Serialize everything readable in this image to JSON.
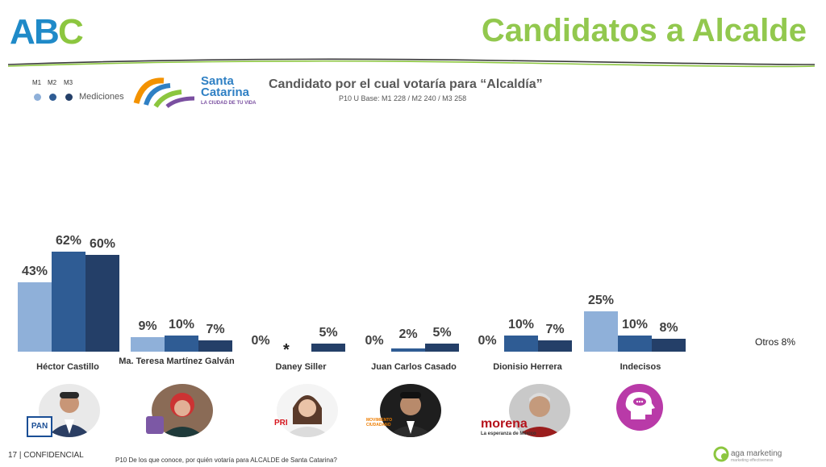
{
  "header": {
    "logo_text": "ABC",
    "title": "Candidatos a Alcalde"
  },
  "legend": {
    "m1": "M1",
    "m2": "M2",
    "m3": "M3",
    "label": "Mediciones",
    "colors": [
      "#8fb0d9",
      "#2f5c94",
      "#243f68"
    ]
  },
  "municipality_logo": {
    "name_line1": "Santa",
    "name_line2": "Catarina",
    "tagline": "LA CIUDAD DE TU VIDA"
  },
  "chart_data": {
    "type": "bar",
    "title": "Candidato por el cual votaría para “Alcaldía”",
    "subtitle": "P10 U Base: M1 228 / M2 240 / M3 258",
    "categories": [
      "Héctor Castillo",
      "Ma. Teresa Martínez Galván",
      "Daney Siller",
      "Juan Carlos Casado",
      "Dionisio Herrera",
      "Indecisos"
    ],
    "series": [
      {
        "name": "M1",
        "values": [
          43,
          9,
          0,
          0,
          0,
          25
        ]
      },
      {
        "name": "M2",
        "values": [
          62,
          10,
          null,
          2,
          10,
          10
        ]
      },
      {
        "name": "M3",
        "values": [
          60,
          7,
          5,
          5,
          7,
          8
        ]
      }
    ],
    "data_labels": [
      [
        "43%",
        "62%",
        "60%"
      ],
      [
        "9%",
        "10%",
        "7%"
      ],
      [
        "0%",
        "",
        "5%"
      ],
      [
        "0%",
        "2%",
        "5%"
      ],
      [
        "0%",
        "10%",
        "7%"
      ],
      [
        "25%",
        "10%",
        "8%"
      ]
    ],
    "annotation": "*",
    "others_label": "Otros 8%",
    "ylim": [
      0,
      70
    ]
  },
  "candidates": [
    {
      "party": "PAN"
    },
    {
      "party": ""
    },
    {
      "party": "PRI"
    },
    {
      "party": "MOVIMIENTO CIUDADANO"
    },
    {
      "party": "morena",
      "party_sub": "La esperanza de México"
    },
    {
      "party": ""
    }
  ],
  "footer": {
    "page": "17",
    "confidential": "| CONFIDENCIAL",
    "note": "P10 De los que conoce, por quién votaría para ALCALDE de Santa Catarina?",
    "brand": "aga marketing",
    "brand_tagline": "marketing effectiveness"
  }
}
